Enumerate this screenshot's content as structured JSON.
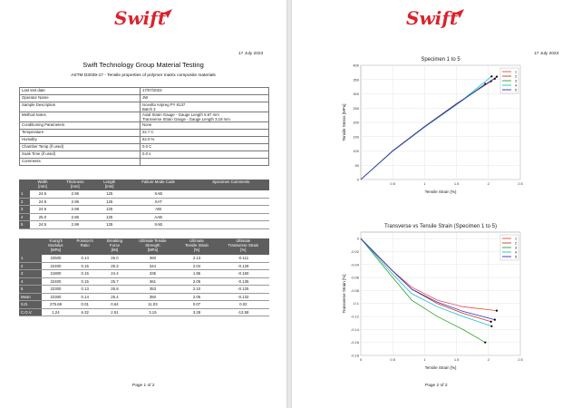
{
  "logo_text": "Swift",
  "page1": {
    "date": "17 July 2023",
    "title": "Swift Technology Group Material Testing",
    "subtitle": "ASTM D3039-17 - Tensile properties of polymer matrix composite materials",
    "info_rows": [
      {
        "label": "Last test date",
        "value": "17/07/2023"
      },
      {
        "label": "Operator Name",
        "value": "JW"
      },
      {
        "label": "Sample Description",
        "value": "Isovolta Airpreg PY 8137\nBatch 3"
      },
      {
        "label": "Method Notes",
        "value": "Axial Strain Gauge - Gauge Length 5.97 mm\nTransverse Strain Gauge - Gauge Length 3.18 mm"
      },
      {
        "label": "Conditioning Parameters",
        "value": "None"
      },
      {
        "label": "Temperature",
        "value": "22.7 C"
      },
      {
        "label": "Humidity",
        "value": "52.0 %"
      },
      {
        "label": "Chamber Temp (if used)",
        "value": "0.0 C"
      },
      {
        "label": "Soak Time (if used)",
        "value": "0.0 s"
      },
      {
        "label": "Comments",
        "value": ""
      }
    ],
    "dims_headers": [
      "",
      "Width\n[mm]",
      "Thickness\n[mm]",
      "Length\n[mm]",
      "Failure Mode Code",
      "Specimen Comments"
    ],
    "dims_rows": [
      [
        "1",
        "24.5",
        "2.95",
        "125",
        "XAB",
        ""
      ],
      [
        "2",
        "24.9",
        "2.95",
        "125",
        "XAT",
        ""
      ],
      [
        "3",
        "24.5",
        "2.98",
        "125",
        "AIB",
        ""
      ],
      [
        "4",
        "25.0",
        "2.86",
        "125",
        "AAB",
        ""
      ],
      [
        "5",
        "24.5",
        "2.99",
        "125",
        "XAB",
        ""
      ]
    ],
    "props_headers": [
      "",
      "Young's\nModulus\n[MPa]",
      "Poisson's\nRatio",
      "Breaking\nForce\n[kN]",
      "Ultimate Tensile\nStrength\n[MPa]",
      "Ultimate\nTensile Strain\n[%]",
      "Ultimate\nTransverse Strain\n[%]"
    ],
    "props_rows": [
      [
        "1",
        "22500",
        "0.14",
        "26.0",
        "360",
        "2.13",
        "-0.111"
      ],
      [
        "2",
        "22400",
        "0.15",
        "25.3",
        "344",
        "2.04",
        "-0.128"
      ],
      [
        "3",
        "21800",
        "0.15",
        "24.4",
        "335",
        "1.95",
        "-0.160"
      ],
      [
        "4",
        "22400",
        "0.15",
        "25.7",
        "361",
        "2.05",
        "-0.135"
      ],
      [
        "5",
        "22300",
        "0.13",
        "25.8",
        "353",
        "2.10",
        "-0.125"
      ],
      [
        "Mean",
        "22300",
        "0.14",
        "25.4",
        "350",
        "2.06",
        "-0.132"
      ],
      [
        "S.D.",
        "275.68",
        "0.01",
        "0.64",
        "11.03",
        "0.07",
        "0.02"
      ],
      [
        "C.O.V.",
        "1.24",
        "6.32",
        "2.51",
        "3.15",
        "3.28",
        "-13.58"
      ]
    ],
    "footer": "Page 1 of 2"
  },
  "page2": {
    "date": "17 July 2023",
    "footer": "Page 2 of 2"
  },
  "chart_data": [
    {
      "type": "line",
      "title": "Specimen 1 to 5",
      "xlabel": "Tensile Strain [%]",
      "ylabel": "Tensile Stress [MPa]",
      "xlim": [
        0,
        2.5
      ],
      "ylim": [
        0,
        400
      ],
      "xticks": [
        "0.5",
        "1",
        "1.5",
        "2",
        "2.5"
      ],
      "yticks": [
        "0",
        "50",
        "100",
        "150",
        "200",
        "250",
        "300",
        "350",
        "400"
      ],
      "legend": "top-right",
      "series": [
        {
          "name": "1",
          "color": "#e8474b",
          "x": [
            0,
            0.5,
            1.0,
            1.5,
            2.0,
            2.13
          ],
          "y": [
            0,
            100,
            185,
            265,
            340,
            360
          ]
        },
        {
          "name": "2",
          "color": "#c0392b",
          "x": [
            0,
            0.5,
            1.0,
            1.5,
            2.0,
            2.04
          ],
          "y": [
            0,
            101,
            186,
            266,
            338,
            344
          ]
        },
        {
          "name": "3",
          "color": "#2ca02c",
          "x": [
            0,
            0.5,
            1.0,
            1.5,
            1.95
          ],
          "y": [
            0,
            100,
            184,
            262,
            335
          ]
        },
        {
          "name": "4",
          "color": "#17becf",
          "x": [
            0,
            0.5,
            1.0,
            1.5,
            2.0,
            2.05
          ],
          "y": [
            0,
            99,
            183,
            262,
            352,
            361
          ]
        },
        {
          "name": "5",
          "color": "#3030c0",
          "x": [
            0,
            0.5,
            1.0,
            1.5,
            2.0,
            2.1
          ],
          "y": [
            0,
            100,
            185,
            264,
            340,
            353
          ]
        }
      ]
    },
    {
      "type": "line",
      "title": "Transverse vs Tensile Strain (Specimen 1 to 5)",
      "xlabel": "Tensile Strain [%]",
      "ylabel": "Transverse Strain [%]",
      "xlim": [
        0,
        2.5
      ],
      "ylim": [
        -0.18,
        0.01
      ],
      "xticks": [
        "0",
        "0.5",
        "1",
        "1.5",
        "2",
        "2.5"
      ],
      "yticks": [
        "0",
        "-0.02",
        "-0.04",
        "-0.06",
        "-0.08",
        "-0.1",
        "-0.12",
        "-0.14",
        "-0.16",
        "-0.18"
      ],
      "legend": "top-right",
      "series": [
        {
          "name": "1",
          "color": "#e8474b",
          "x": [
            0,
            0.5,
            0.8,
            1.2,
            1.6,
            2.13
          ],
          "y": [
            0,
            -0.05,
            -0.075,
            -0.095,
            -0.105,
            -0.111
          ]
        },
        {
          "name": "2",
          "color": "#c0392b",
          "x": [
            0,
            0.5,
            0.8,
            1.2,
            1.6,
            2.04
          ],
          "y": [
            0,
            -0.05,
            -0.078,
            -0.1,
            -0.115,
            -0.128
          ]
        },
        {
          "name": "3",
          "color": "#2ca02c",
          "x": [
            0,
            0.5,
            0.8,
            1.2,
            1.6,
            1.95
          ],
          "y": [
            0,
            -0.06,
            -0.095,
            -0.12,
            -0.14,
            -0.16
          ]
        },
        {
          "name": "4",
          "color": "#17becf",
          "x": [
            0,
            0.5,
            0.8,
            1.2,
            1.6,
            2.05
          ],
          "y": [
            0,
            -0.055,
            -0.085,
            -0.105,
            -0.12,
            -0.135
          ]
        },
        {
          "name": "5",
          "color": "#3030c0",
          "x": [
            0,
            0.5,
            0.8,
            1.2,
            1.6,
            2.1
          ],
          "y": [
            0,
            -0.05,
            -0.078,
            -0.098,
            -0.112,
            -0.125
          ]
        }
      ]
    }
  ]
}
